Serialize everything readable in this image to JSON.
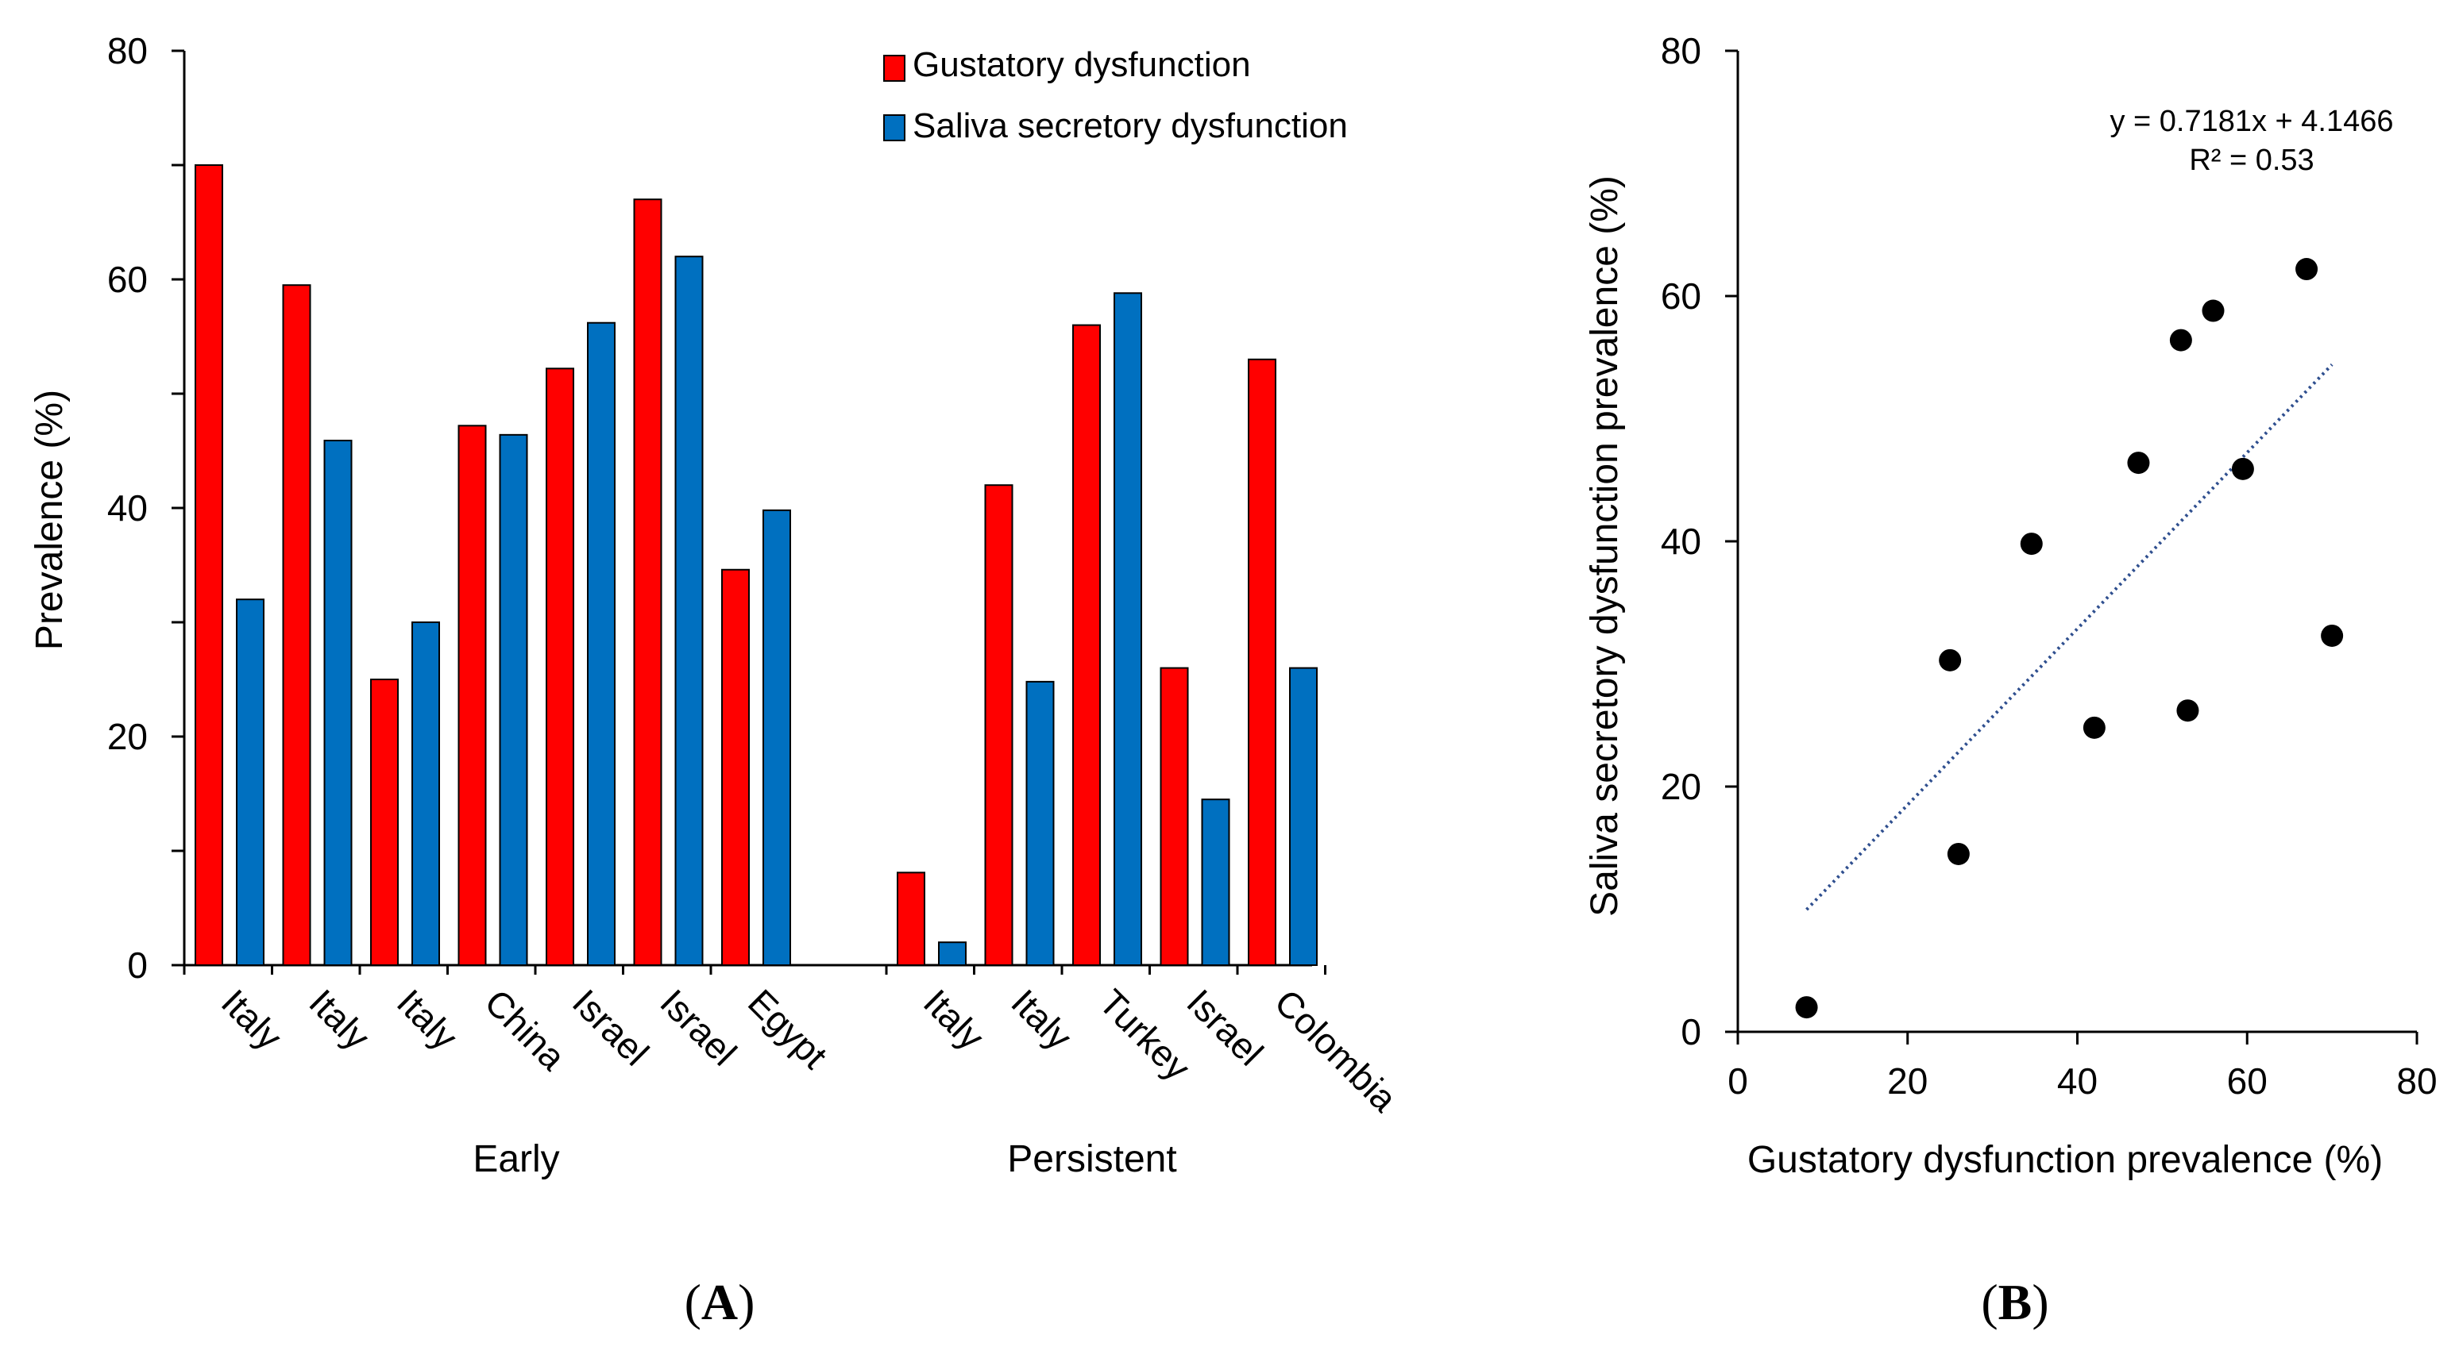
{
  "chart_data": [
    {
      "panel_label": "A",
      "type": "bar",
      "ylabel": "Prevalence (%)",
      "ylim": [
        0,
        80
      ],
      "yticks": [
        0,
        20,
        40,
        60,
        80
      ],
      "legend": {
        "placement": "top-right",
        "entries": [
          "Gustatory dysfunction",
          "Saliva secretory dysfunction"
        ]
      },
      "series_colors": [
        "#ff0000",
        "#0070c0"
      ],
      "groups": [
        {
          "name": "Early",
          "categories": [
            "Italy",
            "Italy",
            "Italy",
            "China",
            "Israel",
            "Israel",
            "Egypt"
          ]
        },
        {
          "name": "Persistent",
          "categories": [
            "Italy",
            "Italy",
            "Turkey",
            "Israel",
            "Colombia"
          ]
        }
      ],
      "series": [
        {
          "name": "Gustatory dysfunction",
          "values": [
            70,
            59.5,
            25,
            47.2,
            52.2,
            67,
            34.6,
            8.1,
            42,
            56,
            26,
            53
          ]
        },
        {
          "name": "Saliva secretory dysfunction",
          "values": [
            32,
            45.9,
            30,
            46.4,
            56.2,
            62,
            39.8,
            2,
            24.8,
            58.8,
            14.5,
            26
          ]
        }
      ]
    },
    {
      "panel_label": "B",
      "type": "scatter",
      "xlabel": "Gustatory dysfunction prevalence (%)",
      "ylabel": "Saliva secretory dysfunction prevalence (%)",
      "xlim": [
        0,
        80
      ],
      "ylim": [
        0,
        80
      ],
      "xticks": [
        0,
        20,
        40,
        60,
        80
      ],
      "yticks": [
        0,
        20,
        40,
        60,
        80
      ],
      "points": [
        {
          "x": 8.1,
          "y": 2
        },
        {
          "x": 25,
          "y": 30.3
        },
        {
          "x": 26,
          "y": 14.5
        },
        {
          "x": 34.6,
          "y": 39.8
        },
        {
          "x": 42,
          "y": 24.8
        },
        {
          "x": 47.2,
          "y": 46.4
        },
        {
          "x": 52.2,
          "y": 56.4
        },
        {
          "x": 53,
          "y": 26.2
        },
        {
          "x": 56,
          "y": 58.8
        },
        {
          "x": 59.5,
          "y": 45.9
        },
        {
          "x": 67,
          "y": 62.2
        },
        {
          "x": 70,
          "y": 32.3
        }
      ],
      "trendline": {
        "slope": 0.7181,
        "intercept": 4.1466,
        "x_range": [
          8.1,
          70
        ],
        "equation_text": "y = 0.7181x + 4.1466",
        "r2_text": "R² = 0.53"
      }
    }
  ]
}
